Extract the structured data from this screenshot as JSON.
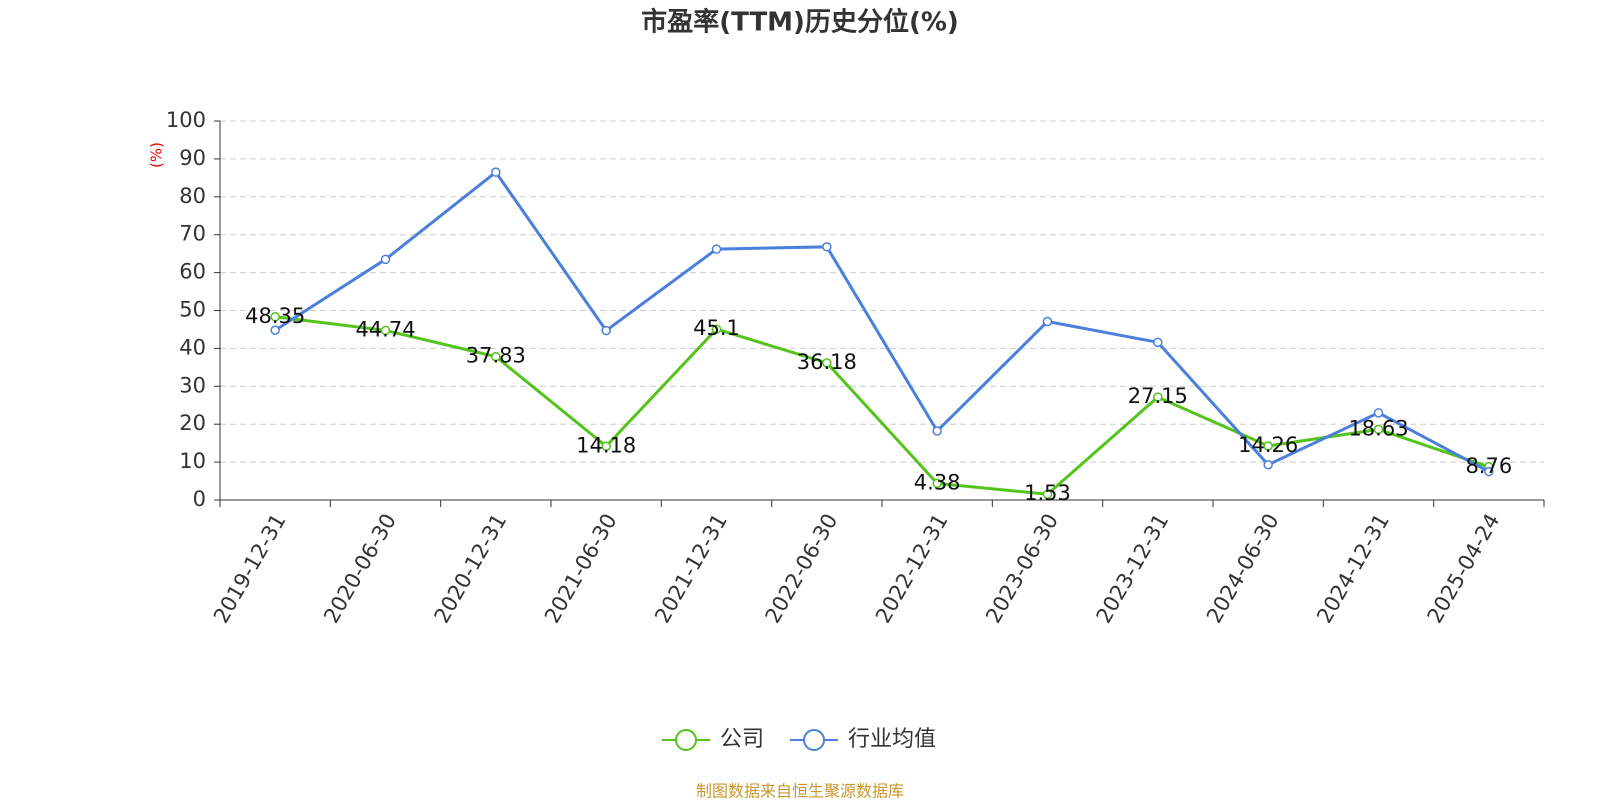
{
  "chart_data": {
    "type": "line",
    "title": "市盈率(TTM)历史分位(%)",
    "y_label": "(%)",
    "categories": [
      "2019-12-31",
      "2020-06-30",
      "2020-12-31",
      "2021-06-30",
      "2021-12-31",
      "2022-06-30",
      "2022-12-31",
      "2023-06-30",
      "2023-12-31",
      "2024-06-30",
      "2024-12-31",
      "2025-04-24"
    ],
    "series": [
      {
        "name": "公司",
        "color": "#52c41a",
        "values": [
          48.35,
          44.74,
          37.83,
          14.18,
          45.1,
          36.18,
          4.38,
          1.53,
          27.15,
          14.26,
          18.63,
          8.76
        ],
        "show_labels": true
      },
      {
        "name": "行业均值",
        "color": "#4a7fdc",
        "values": [
          44.8,
          63.5,
          86.5,
          44.7,
          66.2,
          66.8,
          18.2,
          47.1,
          41.6,
          9.3,
          23,
          7.5
        ],
        "show_labels": false
      }
    ],
    "ylim": [
      0,
      100
    ],
    "yticks": [
      0,
      10,
      20,
      30,
      40,
      50,
      60,
      70,
      80,
      90,
      100
    ],
    "grid": true,
    "source": "制图数据来自恒生聚源数据库"
  }
}
